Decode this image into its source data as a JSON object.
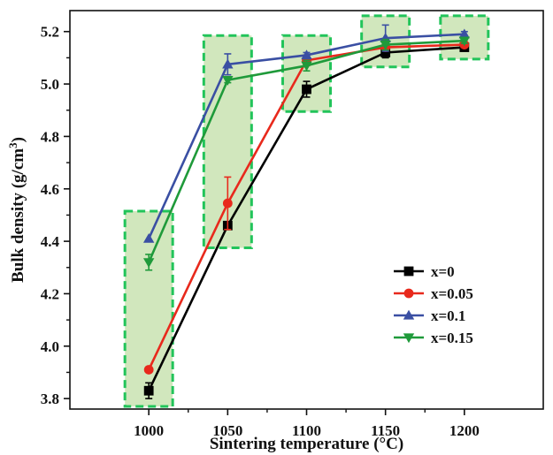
{
  "chart_data": {
    "type": "line",
    "xlabel": "Sintering temperature (°C)",
    "ylabel_main": "Bulk density (g/cm",
    "ylabel_sup": "3",
    "ylabel_end": ")",
    "x": [
      1000,
      1050,
      1100,
      1150,
      1200
    ],
    "x_tick_labels": [
      "1000",
      "1050",
      "1100",
      "1150",
      "1200"
    ],
    "xlim": [
      950,
      1250
    ],
    "ylim": [
      3.76,
      5.28
    ],
    "y_ticks": [
      3.8,
      4.0,
      4.2,
      4.4,
      4.6,
      4.8,
      5.0,
      5.2
    ],
    "y_tick_labels": [
      "3.8",
      "4.0",
      "4.2",
      "4.4",
      "4.6",
      "4.8",
      "5.0",
      "5.2"
    ],
    "grid": false,
    "legend_position": "bottom-right",
    "series": [
      {
        "name": "x=0",
        "color": "#000000",
        "marker": "square",
        "values": [
          3.83,
          4.46,
          4.98,
          5.12,
          5.14
        ],
        "errors": [
          0.03,
          0.01,
          0.03,
          0.02,
          0.01
        ]
      },
      {
        "name": "x=0.05",
        "color": "#e8291c",
        "marker": "circle",
        "values": [
          3.91,
          4.545,
          5.09,
          5.14,
          5.15
        ],
        "errors": [
          0.0,
          0.1,
          0.02,
          0.01,
          0.01
        ]
      },
      {
        "name": "x=0.1",
        "color": "#3a4fa3",
        "marker": "triangle-up",
        "values": [
          4.41,
          5.075,
          5.11,
          5.175,
          5.19
        ],
        "errors": [
          0.0,
          0.04,
          0.01,
          0.05,
          0.01
        ]
      },
      {
        "name": "x=0.15",
        "color": "#1f9a3a",
        "marker": "triangle-down",
        "values": [
          4.32,
          5.015,
          5.07,
          5.15,
          5.165
        ],
        "errors": [
          0.03,
          0.01,
          0.02,
          0.02,
          0.01
        ]
      }
    ],
    "highlight_boxes": [
      {
        "x": 1000,
        "y_range": [
          3.77,
          4.515
        ]
      },
      {
        "x": 1050,
        "y_range": [
          4.375,
          5.185
        ]
      },
      {
        "x": 1100,
        "y_range": [
          4.895,
          5.185
        ]
      },
      {
        "x": 1150,
        "y_range": [
          5.065,
          5.26
        ]
      },
      {
        "x": 1200,
        "y_range": [
          5.095,
          5.26
        ]
      }
    ],
    "highlight_fill": "#c9e3b1",
    "highlight_stroke": "#22c45a"
  }
}
